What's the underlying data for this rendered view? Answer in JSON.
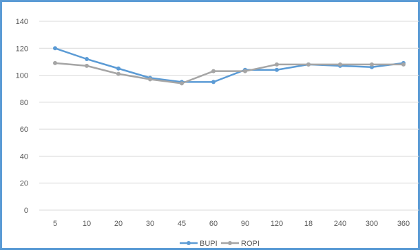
{
  "chart_data": {
    "type": "line",
    "title": "",
    "xlabel": "",
    "ylabel": "",
    "categories": [
      "5",
      "10",
      "20",
      "30",
      "45",
      "60",
      "90",
      "120",
      "18",
      "240",
      "300",
      "360"
    ],
    "ylim": [
      0,
      140
    ],
    "yticks": [
      0,
      20,
      40,
      60,
      80,
      100,
      120,
      140
    ],
    "grid": true,
    "legend_position": "bottom",
    "series": [
      {
        "name": "BUPI",
        "color": "#5b9bd5",
        "values": [
          120,
          112,
          105,
          98,
          95,
          95,
          104,
          104,
          108,
          107,
          106,
          109
        ]
      },
      {
        "name": "ROPI",
        "color": "#a5a5a5",
        "values": [
          109,
          107,
          101,
          97,
          94,
          103,
          103,
          108,
          108,
          108,
          108,
          108
        ]
      }
    ]
  }
}
